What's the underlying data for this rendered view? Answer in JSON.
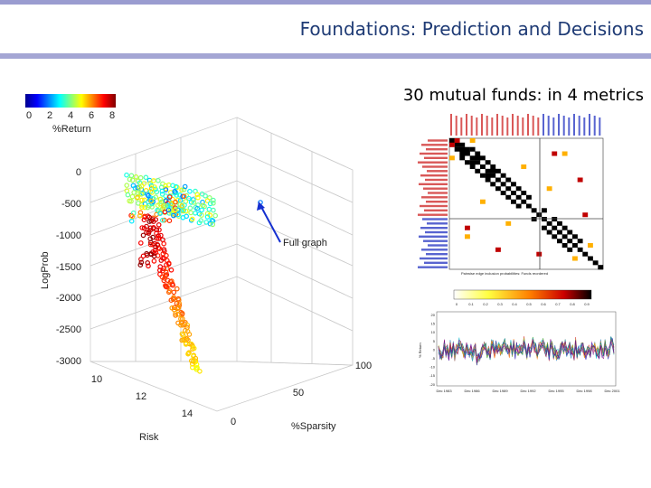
{
  "header": {
    "title": "Foundations: Prediction and Decisions"
  },
  "subtitle": "30 mutual funds: in 4 metrics",
  "annotation": "Full graph",
  "colorbar": {
    "ticks": [
      "0",
      "2",
      "4",
      "6",
      "8"
    ],
    "label": "%Return"
  },
  "chart_data": [
    {
      "type": "scatter",
      "projection": "3d",
      "axes": {
        "x": {
          "label": "Risk",
          "ticks": [
            "10",
            "12",
            "14"
          ]
        },
        "y": {
          "label": "%Sparsity",
          "ticks": [
            "0",
            "50",
            "100"
          ]
        },
        "z": {
          "label": "LogProb",
          "ticks": [
            "0",
            "-500",
            "-1000",
            "-1500",
            "-2000",
            "-2500",
            "-3000"
          ],
          "range": [
            -3000,
            0
          ]
        }
      },
      "color_encoding": "%Return",
      "color_range": [
        0,
        8
      ]
    },
    {
      "type": "heatmap",
      "title": "Pairwise edge inclusion probabilities: Funds reordered",
      "colorbar_ticks": [
        "0",
        "0.1",
        "0.2",
        "0.3",
        "0.4",
        "0.5",
        "0.6",
        "0.7",
        "0.8",
        "0.9"
      ]
    },
    {
      "type": "line",
      "ylabel": "% Return",
      "yticks": [
        "20",
        "15",
        "10",
        "5",
        "0",
        "-5",
        "-10",
        "-15",
        "-20"
      ],
      "xticks": [
        "Dec 1983",
        "Dec 1986",
        "Dec 1989",
        "Dec 1992",
        "Dec 1995",
        "Dec 1998",
        "Dec 2001"
      ]
    }
  ]
}
